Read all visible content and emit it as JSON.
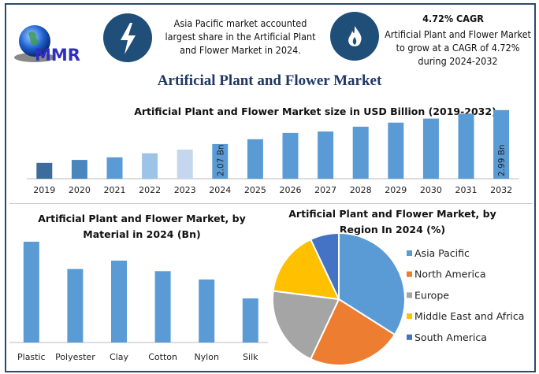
{
  "logo": {
    "text": "MMR"
  },
  "header": {
    "highlight1": "Asia Pacific market accounted largest share in the Artificial Plant and Flower Market in 2024.",
    "cagr_title": "4.72% CAGR",
    "cagr_text": "Artificial Plant and Flower Market to grow at a CAGR of 4.72% during 2024-2032",
    "icon1": "lightning-icon",
    "icon2": "flame-icon"
  },
  "main_title": "Artificial Plant and Flower Market",
  "chart_data": [
    {
      "type": "bar",
      "title": "Artificial Plant and Flower Market size in USD Billion (2019-2032)",
      "categories": [
        "2019",
        "2020",
        "2021",
        "2022",
        "2023",
        "2024",
        "2025",
        "2026",
        "2027",
        "2028",
        "2029",
        "2030",
        "2031",
        "2032"
      ],
      "values": [
        1.56,
        1.64,
        1.71,
        1.82,
        1.92,
        2.07,
        2.2,
        2.37,
        2.41,
        2.54,
        2.65,
        2.76,
        2.89,
        2.99
      ],
      "colors": [
        "#3d6b9c",
        "#4a85bd",
        "#5b9bd5",
        "#9dc3e6",
        "#c5d7ec",
        "#5b9bd5",
        "#5b9bd5",
        "#5b9bd5",
        "#5b9bd5",
        "#5b9bd5",
        "#5b9bd5",
        "#5b9bd5",
        "#5b9bd5",
        "#5b9bd5"
      ],
      "data_labels": {
        "2024": "2.07 Bn",
        "2032": "2.99 Bn"
      },
      "ylim": [
        1.13,
        3.05
      ],
      "grid": false
    },
    {
      "type": "bar",
      "title": "Artificial Plant and Flower Market, by Material in 2024 (Bn)",
      "categories": [
        "Plastic",
        "Polyester",
        "Clay",
        "Cotton",
        "Nylon",
        "Silk"
      ],
      "values": [
        0.48,
        0.35,
        0.39,
        0.34,
        0.3,
        0.21
      ],
      "color": "#5b9bd5",
      "ylim": [
        0,
        0.5
      ],
      "grid": false
    },
    {
      "type": "pie",
      "title": "Artificial Plant and Flower Market, by Region In 2024 (%)",
      "categories": [
        "Asia Pacific",
        "North America",
        "Europe",
        "Middle East and Africa",
        "South America"
      ],
      "values": [
        34,
        23,
        20,
        16,
        7
      ],
      "colors": [
        "#5b9bd5",
        "#ed7d31",
        "#a5a5a5",
        "#ffc000",
        "#4472c4"
      ],
      "legend": "right"
    }
  ]
}
